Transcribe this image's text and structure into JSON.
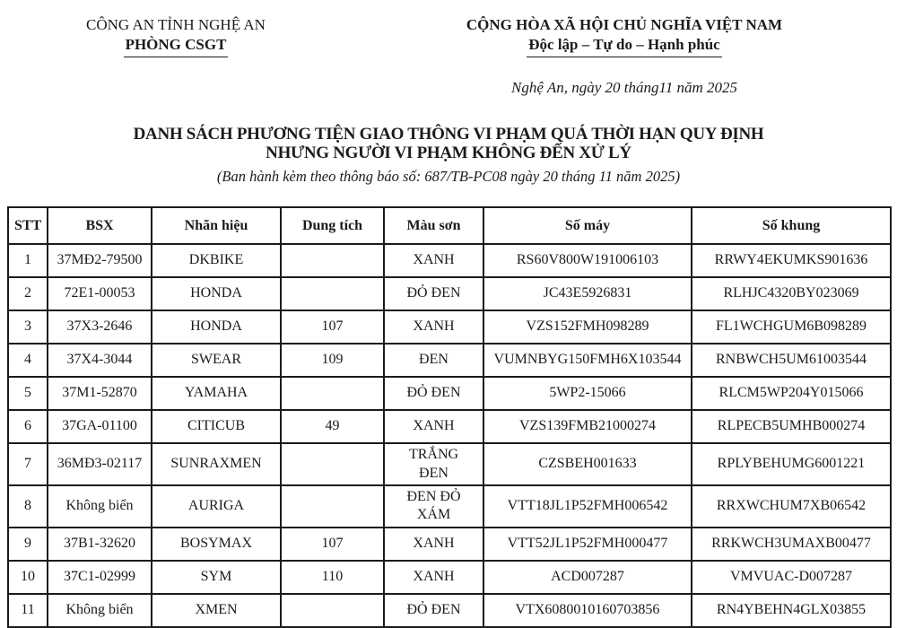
{
  "header": {
    "left": {
      "agency_parent": "CÔNG AN TỈNH NGHỆ AN",
      "agency_unit": "PHÒNG CSGT"
    },
    "right": {
      "national_title": "CỘNG HÒA XÃ HỘI CHỦ NGHĨA VIỆT NAM",
      "national_motto": "Độc lập – Tự do – Hạnh phúc",
      "date_line": "Nghệ An, ngày 20 tháng11 năm 2025"
    }
  },
  "title": {
    "line1": "DANH SÁCH PHƯƠNG TIỆN GIAO THÔNG VI PHẠM QUÁ THỜI HẠN QUY ĐỊNH",
    "line2": "NHƯNG NGƯỜI VI PHẠM KHÔNG ĐẾN XỬ LÝ",
    "subtitle": "(Ban hành kèm theo thông báo số: 687/TB-PC08 ngày 20 tháng 11 năm 2025)"
  },
  "table": {
    "columns": [
      "STT",
      "BSX",
      "Nhãn hiệu",
      "Dung tích",
      "Màu sơn",
      "Số máy",
      "Số khung"
    ],
    "rows": [
      [
        "1",
        "37MĐ2-79500",
        "DKBIKE",
        "",
        "XANH",
        "RS60V800W191006103",
        "RRWY4EKUMKS901636"
      ],
      [
        "2",
        "72E1-00053",
        "HONDA",
        "",
        "ĐỎ ĐEN",
        "JC43E5926831",
        "RLHJC4320BY023069"
      ],
      [
        "3",
        "37X3-2646",
        "HONDA",
        "107",
        "XANH",
        "VZS152FMH098289",
        "FL1WCHGUM6B098289"
      ],
      [
        "4",
        "37X4-3044",
        "SWEAR",
        "109",
        "ĐEN",
        "VUMNBYG150FMH6X103544",
        "RNBWCH5UM61003544"
      ],
      [
        "5",
        "37M1-52870",
        "YAMAHA",
        "",
        "ĐỎ ĐEN",
        "5WP2-15066",
        "RLCM5WP204Y015066"
      ],
      [
        "6",
        "37GA-01100",
        "CITICUB",
        "49",
        "XANH",
        "VZS139FMB21000274",
        "RLPECB5UMHB000274"
      ],
      [
        "7",
        "36MĐ3-02117",
        "SUNRAXMEN",
        "",
        "TRẮNG\nĐEN",
        "CZSBEH001633",
        "RPLYBEHUMG6001221"
      ],
      [
        "8",
        "Không biển",
        "AURIGA",
        "",
        "ĐEN ĐỎ\nXÁM",
        "VTT18JL1P52FMH006542",
        "RRXWCHUM7XB06542"
      ],
      [
        "9",
        "37B1-32620",
        "BOSYMAX",
        "107",
        "XANH",
        "VTT52JL1P52FMH000477",
        "RRKWCH3UMAXB00477"
      ],
      [
        "10",
        "37C1-02999",
        "SYM",
        "110",
        "XANH",
        "ACD007287",
        "VMVUAC-D007287"
      ],
      [
        "11",
        "Không biển",
        "XMEN",
        "",
        "ĐỎ ĐEN",
        "VTX6080010160703856",
        "RN4YBEHN4GLX03855"
      ]
    ]
  },
  "colors": {
    "text": "#1b1b1b",
    "border": "#1b1b1b",
    "background": "#ffffff"
  }
}
